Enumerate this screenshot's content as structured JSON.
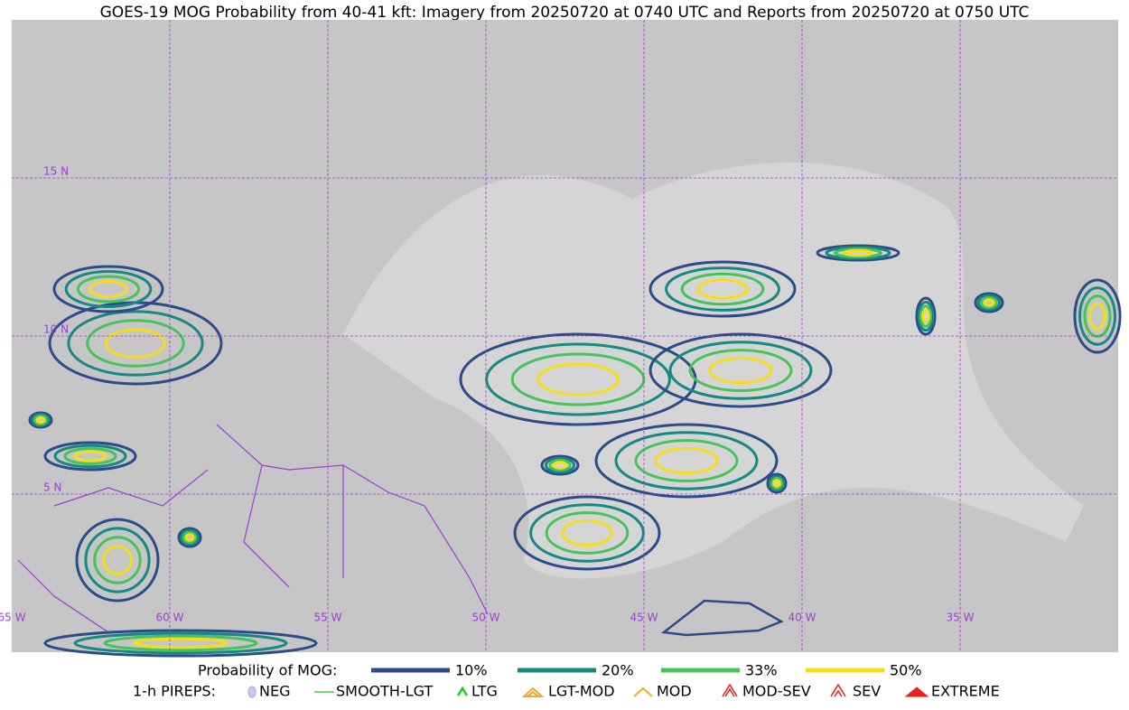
{
  "title": "GOES-19 MOG Probability from 40-41 kft: Imagery from 20250720 at 0740 UTC and Reports from 20250720 at 0750 UTC",
  "map": {
    "latitude_labels": [
      "15 N",
      "10 N",
      "5 N"
    ],
    "longitude_labels": [
      "65 W",
      "60 W",
      "55 W",
      "50 W",
      "45 W",
      "40 W",
      "35 W"
    ]
  },
  "legend": {
    "probability": {
      "title": "Probability of MOG:",
      "items": [
        {
          "label": "10%",
          "color": "#2d4a8a"
        },
        {
          "label": "20%",
          "color": "#168a80"
        },
        {
          "label": "33%",
          "color": "#48c25a"
        },
        {
          "label": "50%",
          "color": "#f4de1c"
        }
      ]
    },
    "pireps": {
      "title": "1-h PIREPS:",
      "items": [
        "NEG",
        "SMOOTH-LGT",
        "LTG",
        "LGT-MOD",
        "MOD",
        "MOD-SEV",
        "SEV",
        "EXTREME"
      ]
    }
  }
}
